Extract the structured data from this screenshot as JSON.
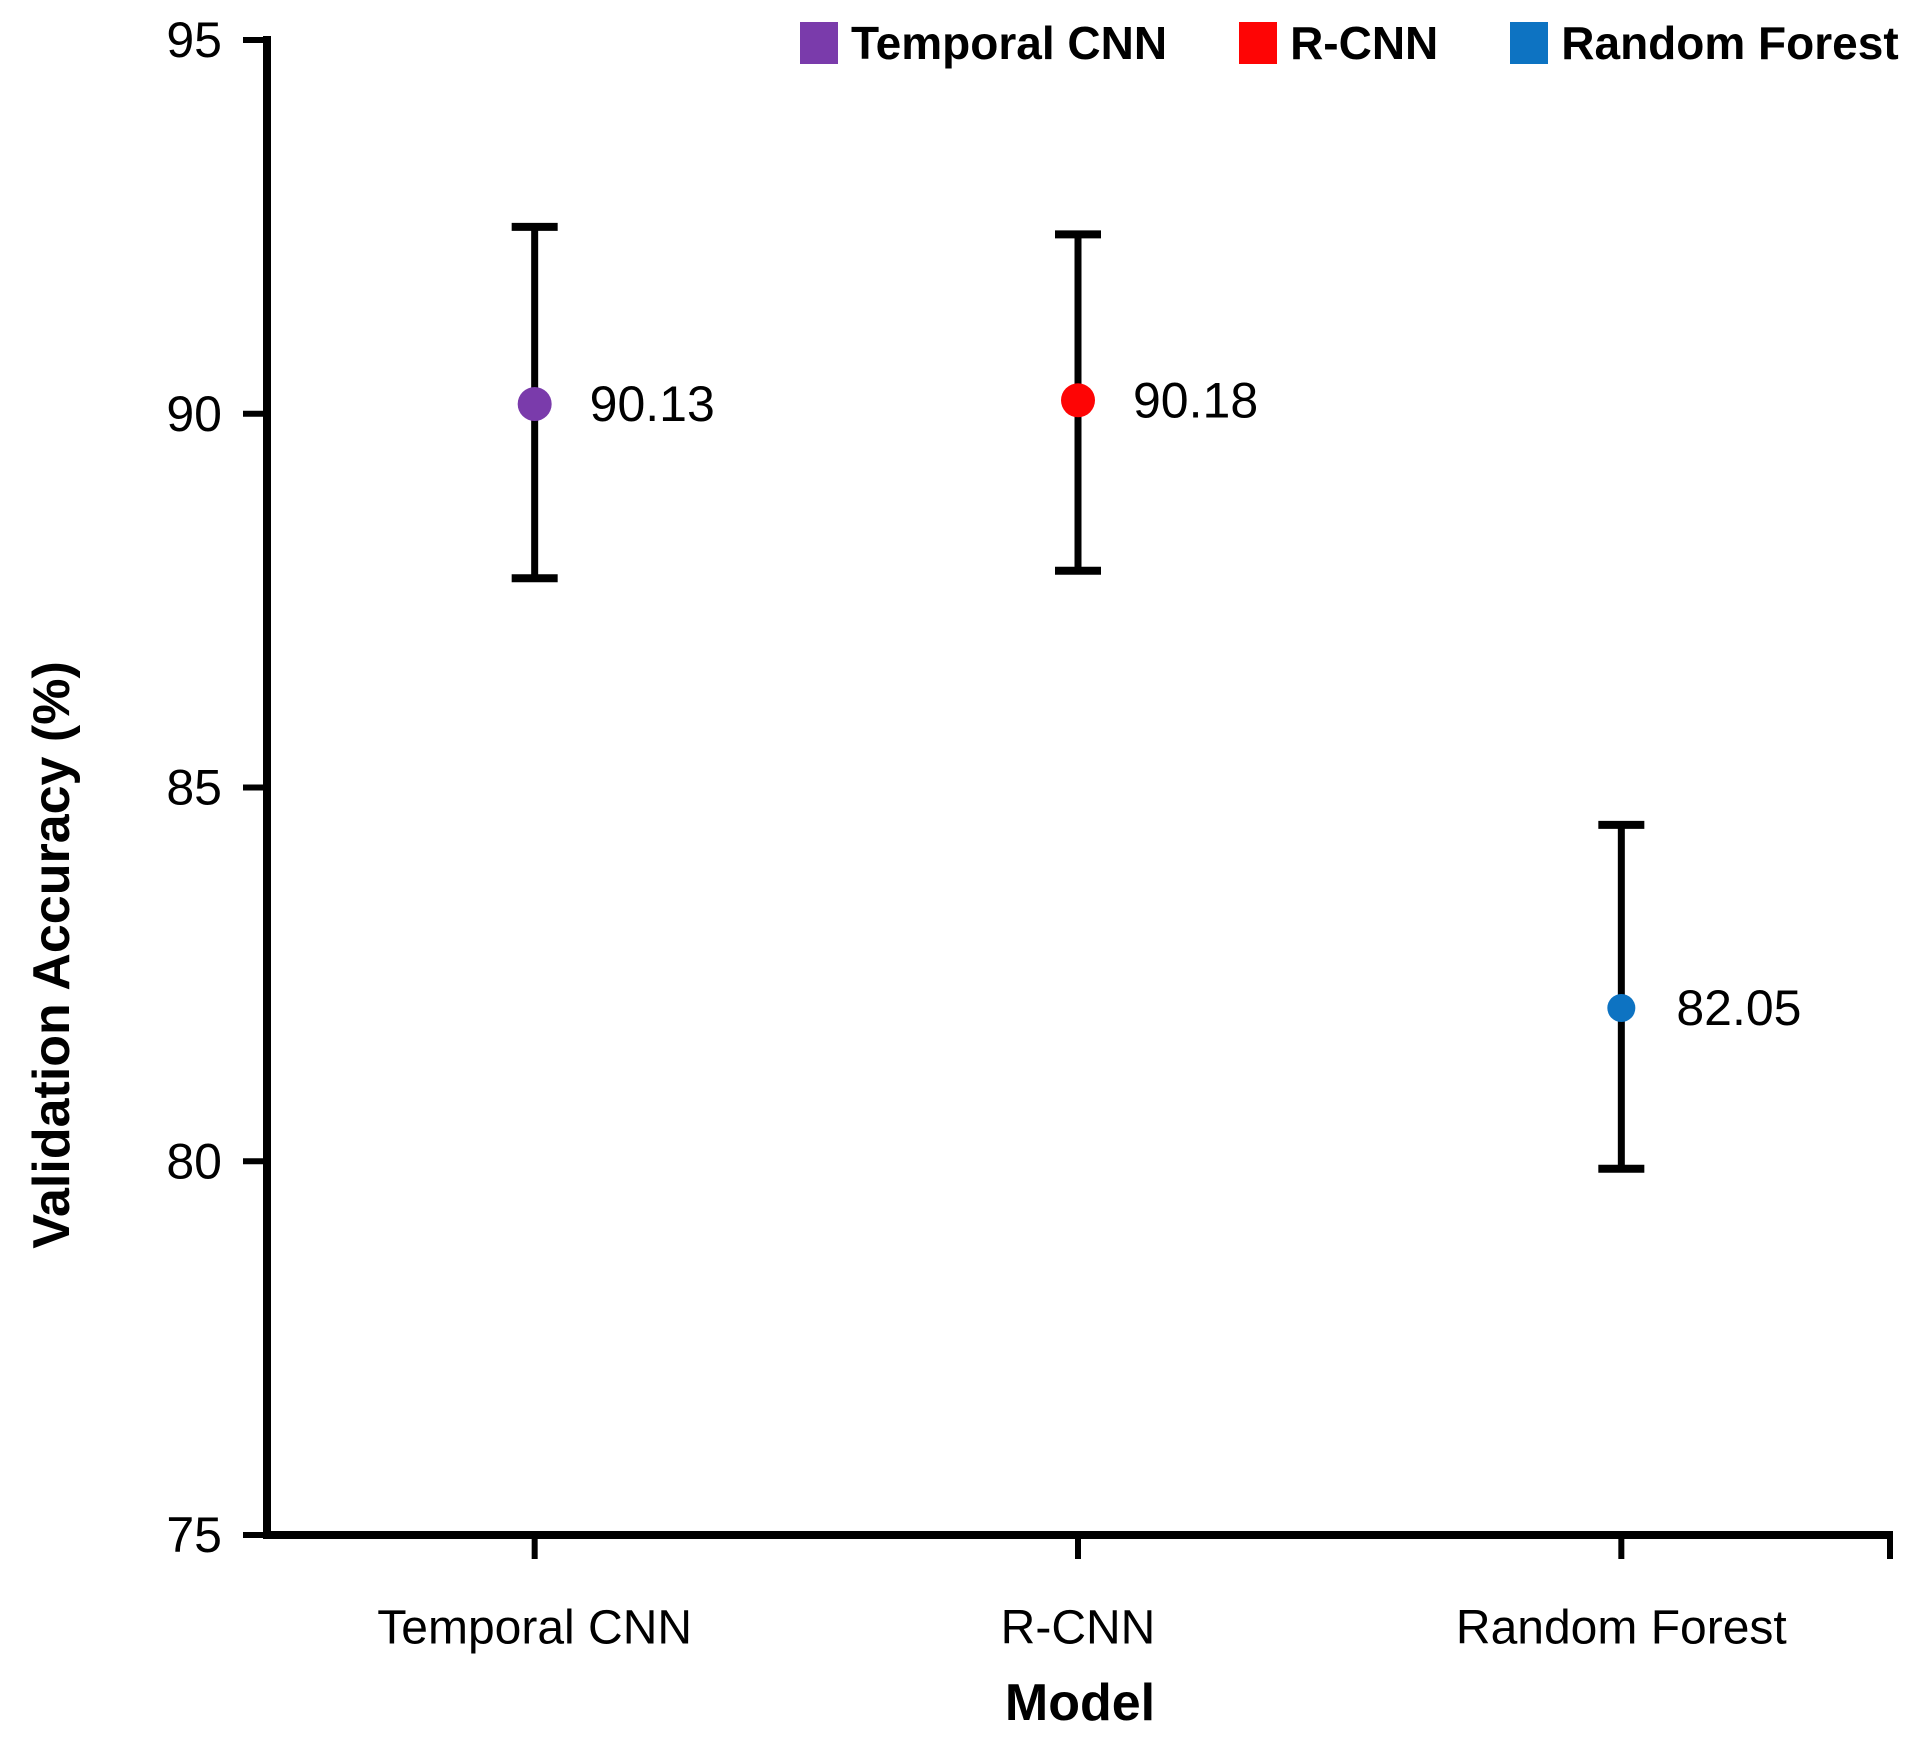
{
  "chart_data": {
    "type": "scatter",
    "title": "",
    "xlabel": "Model",
    "ylabel": "Validation Accuracy (%)",
    "categories": [
      "Temporal CNN",
      "R-CNN",
      "Random Forest"
    ],
    "ytick_labels": [
      "75",
      "80",
      "85",
      "90",
      "95"
    ],
    "yticks": [
      75,
      80,
      85,
      90,
      95
    ],
    "ylim": [
      75,
      95
    ],
    "grid": false,
    "legend_position": "top",
    "axis_color": "#000000",
    "error_bar_color": "#000000",
    "series": [
      {
        "name": "Temporal CNN",
        "color": "#7A3BAB",
        "category": "Temporal CNN",
        "value": 90.13,
        "data_label": "90.13",
        "error_high": 92.5,
        "error_low": 87.8
      },
      {
        "name": "R-CNN",
        "color": "#FE0505",
        "category": "R-CNN",
        "value": 90.18,
        "data_label": "90.18",
        "error_high": 92.4,
        "error_low": 87.9
      },
      {
        "name": "Random Forest",
        "color": "#0D73C2",
        "category": "Random Forest",
        "value": 82.05,
        "data_label": "82.05",
        "error_high": 84.5,
        "error_low": 79.9
      }
    ]
  }
}
